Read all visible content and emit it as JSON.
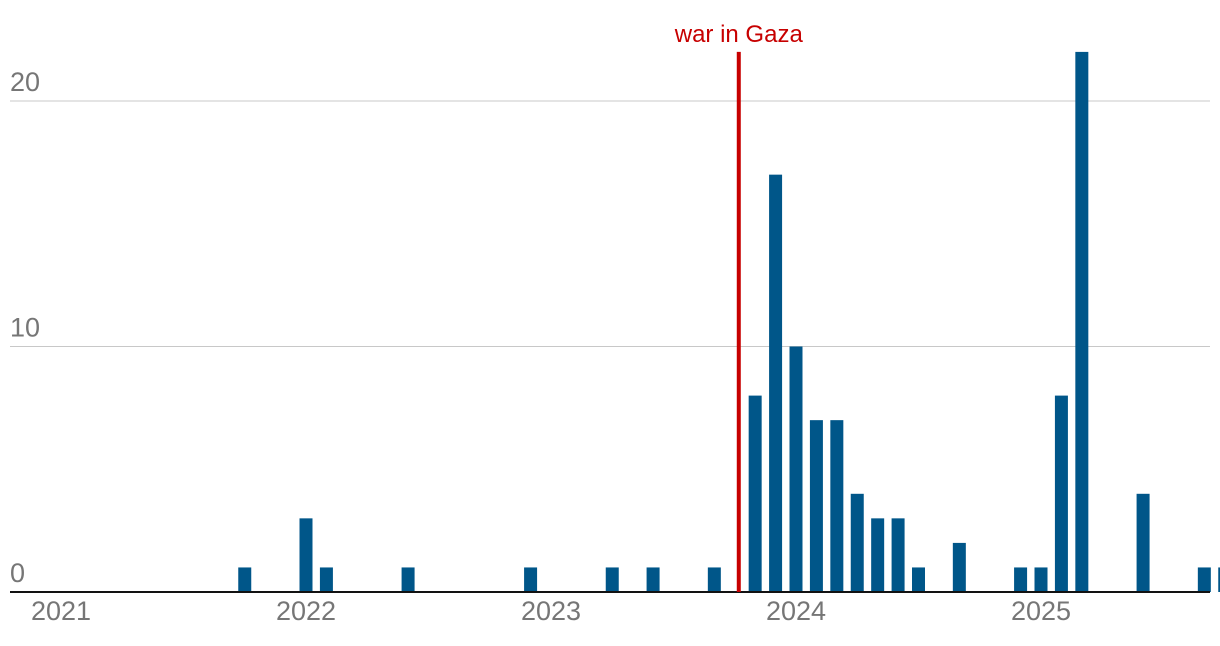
{
  "chart_data": {
    "type": "bar",
    "title": "",
    "xlabel": "",
    "ylabel": "",
    "ylim": [
      0,
      22
    ],
    "y_ticks": [
      {
        "value": 0,
        "label": "0"
      },
      {
        "value": 10,
        "label": "10"
      },
      {
        "value": 20,
        "label": "20"
      }
    ],
    "x_ticks": [
      {
        "date": "2021-01-01",
        "label": "2021"
      },
      {
        "date": "2022-01-01",
        "label": "2022"
      },
      {
        "date": "2023-01-01",
        "label": "2023"
      },
      {
        "date": "2024-01-01",
        "label": "2024"
      },
      {
        "date": "2025-01-01",
        "label": "2025"
      }
    ],
    "bar_color": "#005689",
    "grid": true,
    "x_range": [
      "2021-01-01",
      "2025-10-01"
    ],
    "series": [
      {
        "points": [
          {
            "date": "2021-10-01",
            "value": 1
          },
          {
            "date": "2022-01-01",
            "value": 3
          },
          {
            "date": "2022-02-01",
            "value": 1
          },
          {
            "date": "2022-06-01",
            "value": 1
          },
          {
            "date": "2022-12-01",
            "value": 1
          },
          {
            "date": "2023-04-01",
            "value": 1
          },
          {
            "date": "2023-06-01",
            "value": 1
          },
          {
            "date": "2023-09-01",
            "value": 1
          },
          {
            "date": "2023-11-01",
            "value": 8
          },
          {
            "date": "2023-12-01",
            "value": 17
          },
          {
            "date": "2024-01-01",
            "value": 10
          },
          {
            "date": "2024-02-01",
            "value": 7
          },
          {
            "date": "2024-03-01",
            "value": 7
          },
          {
            "date": "2024-04-01",
            "value": 4
          },
          {
            "date": "2024-05-01",
            "value": 3
          },
          {
            "date": "2024-06-01",
            "value": 3
          },
          {
            "date": "2024-07-01",
            "value": 1
          },
          {
            "date": "2024-09-01",
            "value": 2
          },
          {
            "date": "2024-12-01",
            "value": 1
          },
          {
            "date": "2025-01-01",
            "value": 1
          },
          {
            "date": "2025-02-01",
            "value": 8
          },
          {
            "date": "2025-03-01",
            "value": 22
          },
          {
            "date": "2025-06-01",
            "value": 4
          },
          {
            "date": "2025-09-01",
            "value": 1
          },
          {
            "date": "2025-10-01",
            "value": 1
          }
        ]
      }
    ],
    "annotations": [
      {
        "date": "2023-10-07",
        "label": "war in Gaza",
        "color": "#c70000"
      }
    ]
  }
}
